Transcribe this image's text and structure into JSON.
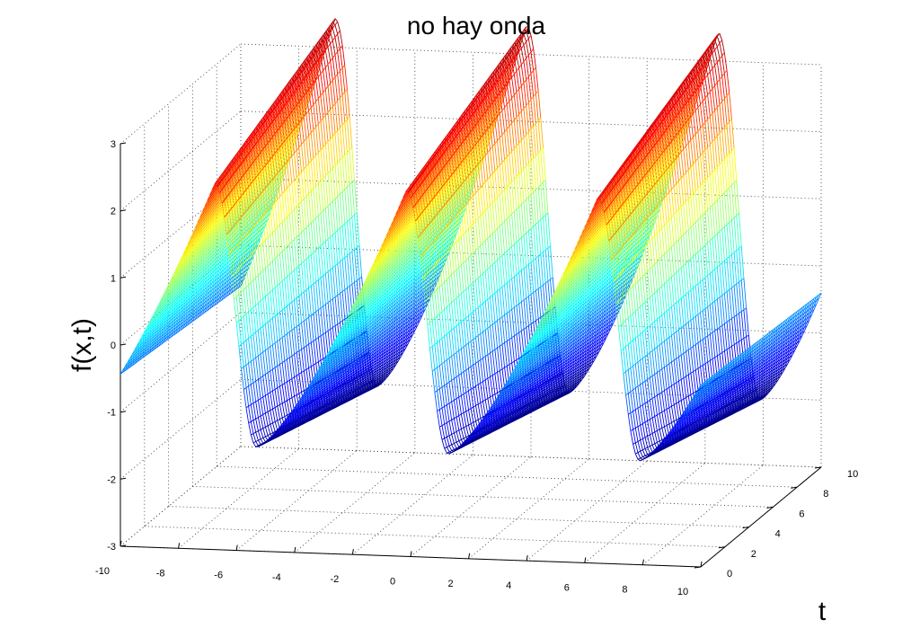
{
  "chart_data": {
    "type": "surface",
    "title": "no hay onda",
    "xlabel": "",
    "ylabel": "t",
    "zlabel": "f(x,t)",
    "xlim": [
      -10,
      10
    ],
    "ylim": [
      0,
      10
    ],
    "zlim": [
      -3,
      3
    ],
    "x_ticks": [
      -10,
      -8,
      -6,
      -4,
      -2,
      0,
      2,
      4,
      6,
      8,
      10
    ],
    "y_ticks": [
      0,
      2,
      4,
      6,
      8,
      10
    ],
    "z_ticks": [
      -3,
      -2,
      -1,
      0,
      1,
      2,
      3
    ],
    "grid": true,
    "colormap": "jet",
    "surface": {
      "x_range": [
        -10,
        10
      ],
      "t_range": [
        0,
        10
      ],
      "period_x": 6.6,
      "phase_offset": 5.3,
      "peak_value": 2.45,
      "trough_value": -1.45,
      "rise_fraction": 0.78,
      "t_amplification": 0.4
    }
  }
}
